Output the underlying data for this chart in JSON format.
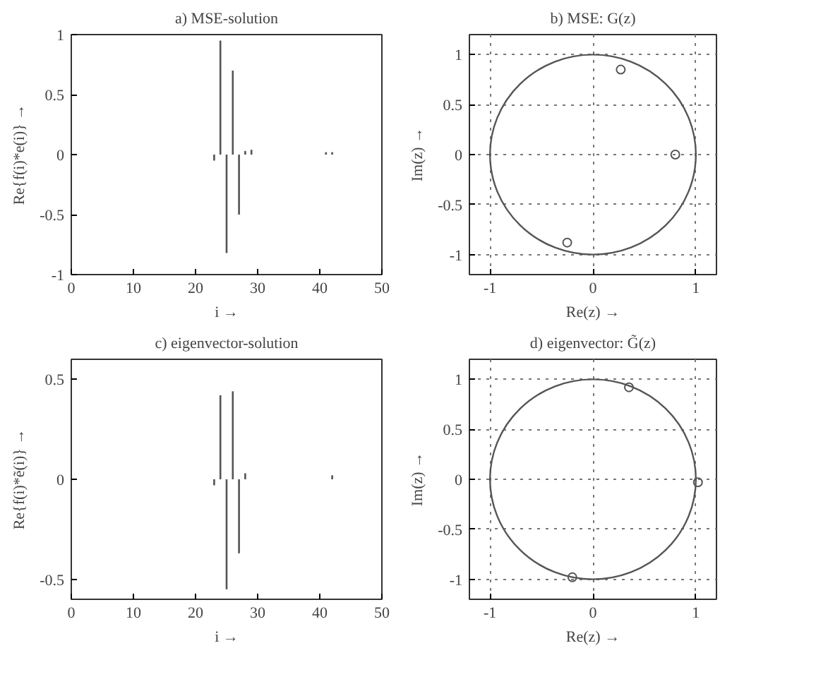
{
  "chart_data": [
    {
      "type": "bar",
      "title": "a) MSE-solution",
      "xlabel": "i →",
      "ylabel": "Re{f(i)*e(i)} →",
      "xlim": [
        0,
        50
      ],
      "xticks": [
        0,
        10,
        20,
        30,
        40,
        50
      ],
      "ylim": [
        -1,
        1
      ],
      "yticks": [
        -1,
        -0.5,
        0,
        0.5,
        1
      ],
      "grid": false,
      "x": [
        23,
        24,
        25,
        26,
        27,
        28,
        29,
        41,
        42
      ],
      "values": [
        -0.05,
        0.95,
        -0.82,
        0.7,
        -0.5,
        0.03,
        0.04,
        0.02,
        0.02
      ],
      "color": "#555555"
    },
    {
      "type": "scatter",
      "title": "b) MSE: G(z)",
      "xlabel": "Re(z) →",
      "ylabel": "Im(z) →",
      "xlim": [
        -1.2,
        1.2
      ],
      "xticks": [
        -1,
        0,
        1
      ],
      "ylim": [
        -1.2,
        1.2
      ],
      "yticks": [
        -1,
        -0.5,
        0,
        0.5,
        1
      ],
      "grid": true,
      "series": [
        {
          "type": "scatter",
          "color": "#555555",
          "marker": "circle",
          "x": [
            0.27,
            0.8,
            -0.25
          ],
          "values": [
            0.85,
            0.0,
            -0.88
          ]
        }
      ]
    },
    {
      "type": "bar",
      "title": "c) eigenvector-solution",
      "xlabel": "i →",
      "ylabel": "Re{f(i)*ẽ(i)} →",
      "xlim": [
        0,
        50
      ],
      "xticks": [
        0,
        10,
        20,
        30,
        40,
        50
      ],
      "ylim": [
        -0.6,
        0.6
      ],
      "yticks": [
        -0.5,
        0,
        0.5
      ],
      "grid": false,
      "x": [
        23,
        24,
        25,
        26,
        27,
        28,
        42
      ],
      "values": [
        -0.03,
        0.42,
        -0.55,
        0.44,
        -0.37,
        0.03,
        0.02
      ],
      "color": "#555555"
    },
    {
      "type": "scatter",
      "title": "d) eigenvector: G̃(z)",
      "xlabel": "Re(z) →",
      "ylabel": "Im(z) →",
      "xlim": [
        -1.2,
        1.2
      ],
      "xticks": [
        -1,
        0,
        1
      ],
      "ylim": [
        -1.2,
        1.2
      ],
      "yticks": [
        -1,
        -0.5,
        0,
        0.5,
        1
      ],
      "grid": true,
      "series": [
        {
          "type": "scatter",
          "color": "#555555",
          "marker": "circle",
          "x": [
            0.35,
            1.02,
            -0.2
          ],
          "values": [
            0.92,
            -0.03,
            -0.98
          ]
        }
      ]
    }
  ]
}
